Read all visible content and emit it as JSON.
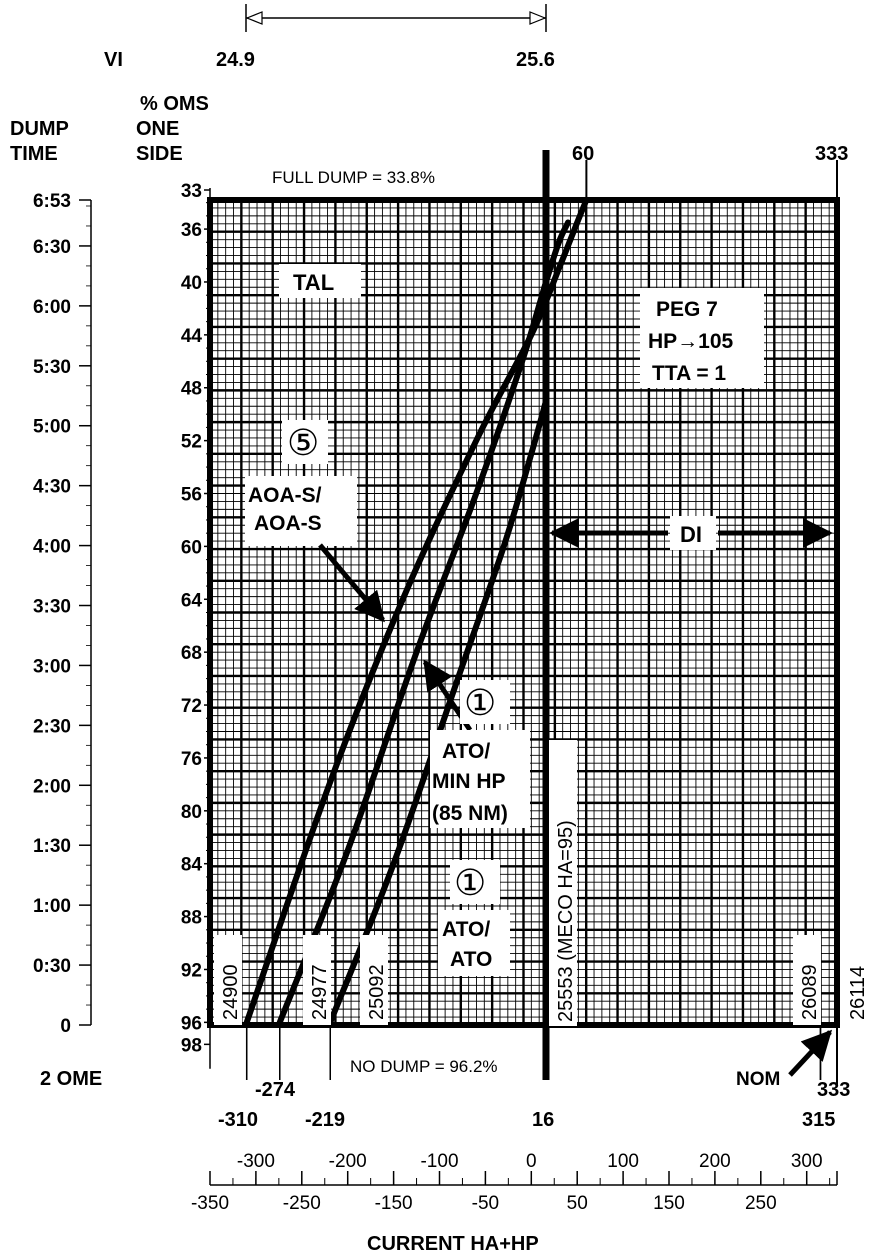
{
  "header": {
    "vi_label": "VI",
    "vi_start": "24.9",
    "vi_end": "25.6",
    "oms_title_1": "% OMS",
    "oms_title_2": "ONE",
    "oms_title_3": "SIDE",
    "dump_title_1": "DUMP",
    "dump_title_2": "TIME"
  },
  "top_labels": {
    "ha_60": "60",
    "ha_333": "333",
    "full_dump": "FULL DUMP = 33.8%",
    "no_dump": "NO DUMP = 96.2%"
  },
  "oms_ticks": [
    "33",
    "36",
    "40",
    "44",
    "48",
    "52",
    "56",
    "60",
    "64",
    "68",
    "72",
    "76",
    "80",
    "84",
    "88",
    "92",
    "96",
    "98"
  ],
  "dump_time_ticks": [
    "6:53",
    "6:30",
    "6:00",
    "5:30",
    "5:00",
    "4:30",
    "4:00",
    "3:30",
    "3:00",
    "2:30",
    "2:00",
    "1:30",
    "1:00",
    "0:30",
    "0"
  ],
  "labels": {
    "tal": "TAL",
    "peg_1": "PEG 7",
    "peg_2": "HP→105",
    "peg_3": "TTA = 1",
    "di": "DI",
    "circle_5": "⑤",
    "aoa_1": "AOA-S/",
    "aoa_2": "AOA-S",
    "circle_1a": "①",
    "ato_min_1": "ATO/",
    "ato_min_2": "MIN HP",
    "ato_min_3": "(85 NM)",
    "circle_1b": "①",
    "ato_ato_1": "ATO/",
    "ato_ato_2": "ATO",
    "meco": "25553 (MECO HA=95)",
    "v_24900": "24900",
    "v_24977": "24977",
    "v_25092": "25092",
    "v_26089": "26089",
    "v_26114": "26114",
    "nom": "NOM",
    "two_ome": "2 OME"
  },
  "ha_hp_ticks": {
    "neg310": "-310",
    "neg274": "-274",
    "neg219": "-219",
    "p16": "16",
    "p315": "315",
    "p333": "333"
  },
  "x_axis": {
    "ticks": [
      "-350",
      "-300",
      "-250",
      "-200",
      "-150",
      "-100",
      "-50",
      "0",
      "50",
      "100",
      "150",
      "200",
      "250",
      "300"
    ],
    "title": "CURRENT HA+HP"
  },
  "chart_data": {
    "type": "line",
    "title": "",
    "xlabel": "CURRENT HA+HP",
    "ylabel": "% OMS ONE SIDE",
    "xlim": [
      -350,
      333
    ],
    "ylim": [
      33,
      96
    ],
    "series": [
      {
        "name": "TAL",
        "x": [
          -310,
          -220,
          -140,
          -60,
          0,
          30,
          50,
          60
        ],
        "y": [
          96,
          78,
          64,
          52,
          44,
          39,
          35.5,
          33.8
        ]
      },
      {
        "name": "AOA-S/AOA-S",
        "x": [
          -274,
          -200,
          -125,
          -60,
          -10,
          16,
          30,
          40
        ],
        "y": [
          96,
          83,
          68,
          56,
          46,
          40,
          37,
          35.5
        ]
      },
      {
        "name": "ATO/ATO",
        "x": [
          -219,
          -150,
          -80,
          -30,
          0,
          16
        ],
        "y": [
          96,
          84,
          70,
          60,
          53,
          49
        ]
      }
    ],
    "vertical_lines": [
      -310,
      -274,
      -219,
      16,
      315
    ],
    "velocity_labels": {
      "-310": 24900,
      "-274": 24977,
      "-219": 25092,
      "16": 25553,
      "315": 26089,
      "333": 26114
    },
    "full_dump_pct": 33.8,
    "no_dump_pct": 96.2
  }
}
